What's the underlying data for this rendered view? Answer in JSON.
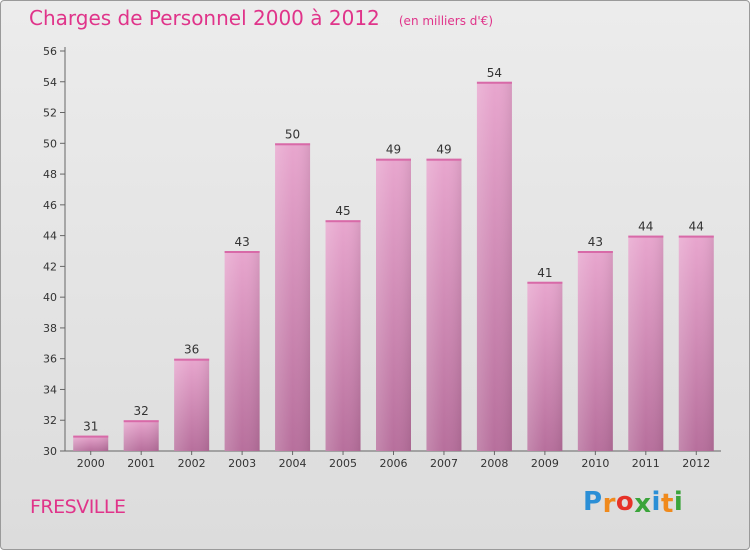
{
  "chart_data": {
    "type": "bar",
    "title": "Charges de Personnel 2000 à 2012",
    "unit_note": "(en milliers d'€)",
    "categories": [
      "2000",
      "2001",
      "2002",
      "2003",
      "2004",
      "2005",
      "2006",
      "2007",
      "2008",
      "2009",
      "2010",
      "2011",
      "2012"
    ],
    "values": [
      31,
      32,
      36,
      43,
      50,
      45,
      49,
      49,
      54,
      41,
      43,
      44,
      44
    ],
    "ylim": [
      30,
      56
    ],
    "yticks": [
      30,
      32,
      34,
      36,
      38,
      40,
      42,
      44,
      46,
      48,
      50,
      52,
      54,
      56
    ],
    "grid": false,
    "bar_color_top": "#e8a6ce",
    "bar_color_bottom": "#b76f9c",
    "xlabel": "",
    "ylabel": ""
  },
  "commune": "FRESVILLE",
  "logo": {
    "letters": [
      "P",
      "r",
      "o",
      "x",
      "i",
      "t",
      "i"
    ],
    "colors": [
      "#2b8fd6",
      "#f08a1c",
      "#e63228",
      "#3aa43a",
      "#2b8fd6",
      "#f08a1c",
      "#3aa43a"
    ]
  }
}
